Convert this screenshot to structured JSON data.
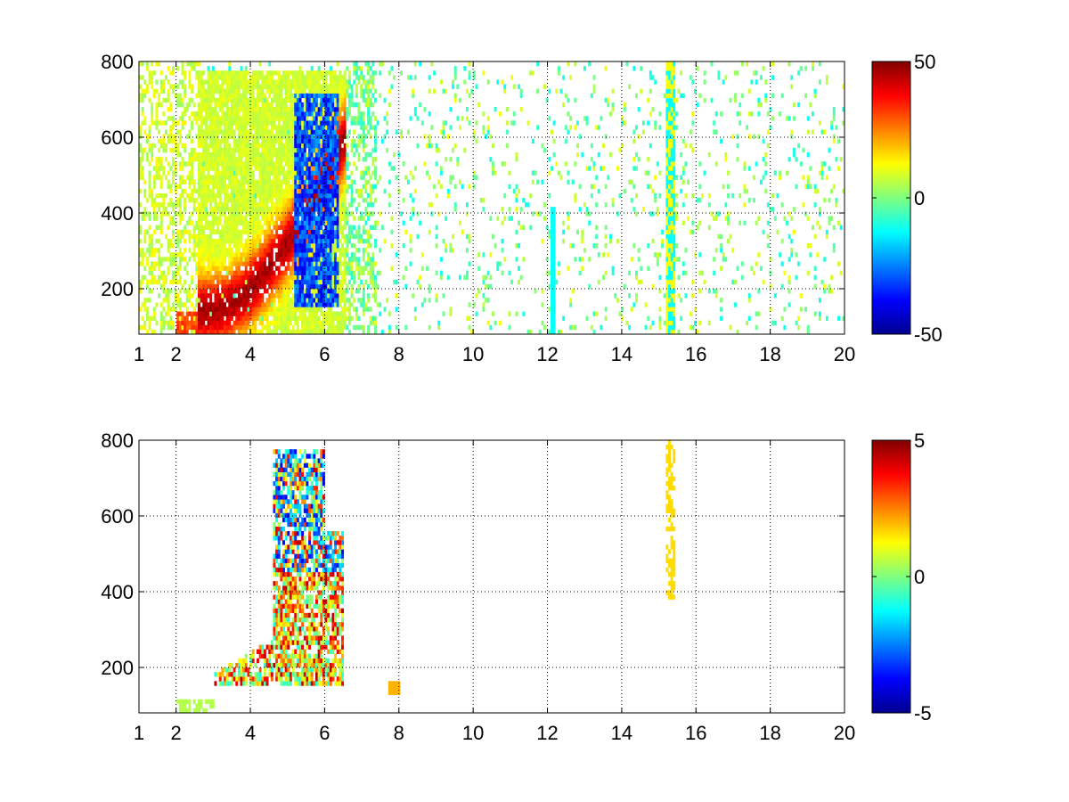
{
  "chart_data": [
    {
      "type": "heatmap",
      "title": "",
      "xlabel": "",
      "ylabel": "",
      "xlim": [
        1,
        20
      ],
      "ylim": [
        80,
        800
      ],
      "x_ticks": [
        1,
        2,
        4,
        6,
        8,
        10,
        12,
        14,
        16,
        18,
        20
      ],
      "y_ticks": [
        200,
        400,
        600,
        800
      ],
      "x_tick_labels": [
        "1",
        "2",
        "4",
        "6",
        "8",
        "10",
        "12",
        "14",
        "16",
        "18",
        "20"
      ],
      "y_tick_labels": [
        "200",
        "400",
        "600",
        "800"
      ],
      "grid": true,
      "colormap": "jet",
      "colorbar": {
        "limits": [
          -50,
          50
        ],
        "tick_labels": [
          "50",
          "0",
          "-50"
        ],
        "tick_values": [
          50,
          0,
          -50
        ],
        "placement": "right"
      },
      "background": "#ffffff",
      "regions": [
        {
          "x": [
            3.0,
            5.2
          ],
          "y_center": 210,
          "value": 38
        },
        {
          "x": [
            4.3,
            5.6
          ],
          "y_center": 380,
          "value": 35
        },
        {
          "x": [
            5.1,
            6.3
          ],
          "y_center": 400,
          "value": -32
        },
        {
          "x": [
            2.0,
            3.2
          ],
          "y_center": 120,
          "value": 25
        },
        {
          "x": [
            15.2,
            15.4
          ],
          "y_center": 440,
          "value": 8
        }
      ]
    },
    {
      "type": "heatmap",
      "title": "",
      "xlabel": "",
      "ylabel": "",
      "xlim": [
        1,
        20
      ],
      "ylim": [
        80,
        800
      ],
      "x_ticks": [
        1,
        2,
        4,
        6,
        8,
        10,
        12,
        14,
        16,
        18,
        20
      ],
      "y_ticks": [
        200,
        400,
        600,
        800
      ],
      "x_tick_labels": [
        "1",
        "2",
        "4",
        "6",
        "8",
        "10",
        "12",
        "14",
        "16",
        "18",
        "20"
      ],
      "y_tick_labels": [
        "200",
        "400",
        "600",
        "800"
      ],
      "grid": true,
      "colormap": "jet",
      "colorbar": {
        "limits": [
          -5,
          5
        ],
        "tick_labels": [
          "5",
          "0",
          "-5"
        ],
        "tick_values": [
          5,
          0,
          -5
        ],
        "placement": "right"
      },
      "background": "#ffffff",
      "regions": [
        {
          "x": [
            3.0,
            6.4
          ],
          "y_center": 300,
          "value": 2.5
        },
        {
          "x": [
            4.8,
            6.0
          ],
          "y_center": 600,
          "value": -4
        },
        {
          "x": [
            15.2,
            15.4
          ],
          "y_center": 600,
          "value": 1.5
        }
      ]
    }
  ]
}
